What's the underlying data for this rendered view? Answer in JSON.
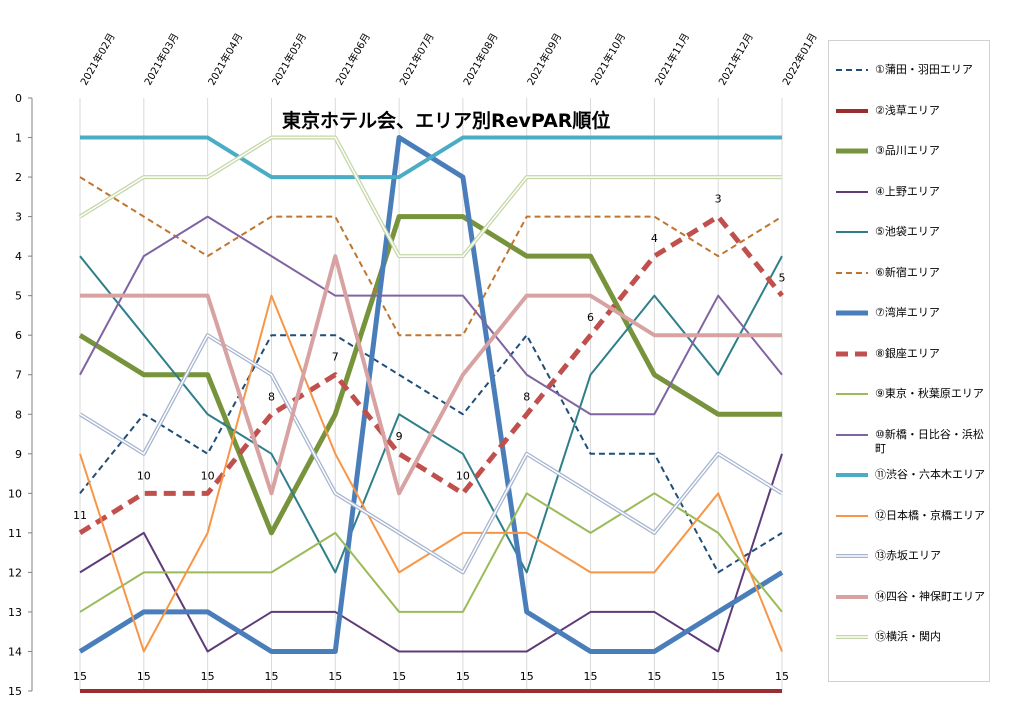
{
  "chart_data": {
    "type": "line",
    "title": "東京ホテル会、エリア別RevPAR順位",
    "categories": [
      "2021年02月",
      "2021年03月",
      "2021年04月",
      "2021年05月",
      "2021年06月",
      "2021年07月",
      "2021年08月",
      "2021年09月",
      "2021年10月",
      "2021年11月",
      "2021年12月",
      "2022年01月"
    ],
    "yticks": [
      "0",
      "1",
      "2",
      "3",
      "4",
      "5",
      "6",
      "7",
      "8",
      "9",
      "10",
      "11",
      "12",
      "13",
      "14",
      "15"
    ],
    "ylim": [
      0,
      15
    ],
    "y_reversed": true,
    "legend_position": "right",
    "bottom_labels": [
      "15",
      "15",
      "15",
      "15",
      "15",
      "15",
      "15",
      "15",
      "15",
      "15",
      "15",
      "15"
    ],
    "series": [
      {
        "name": "①蒲田・羽田エリア",
        "color": "#1F4E79",
        "dash": "dash",
        "width": 2,
        "values": [
          10,
          8,
          9,
          6,
          6,
          7,
          8,
          6,
          9,
          9,
          12,
          11
        ]
      },
      {
        "name": "②浅草エリア",
        "color": "#9B2D30",
        "dash": "solid",
        "width": 4,
        "values": [
          15,
          15,
          15,
          15,
          15,
          15,
          15,
          15,
          15,
          15,
          15,
          15
        ]
      },
      {
        "name": "③品川エリア",
        "color": "#77933C",
        "dash": "solid",
        "width": 5,
        "values": [
          6,
          7,
          7,
          11,
          8,
          3,
          3,
          4,
          4,
          7,
          8,
          8
        ]
      },
      {
        "name": "④上野エリア",
        "color": "#5F3B77",
        "dash": "solid",
        "width": 2,
        "values": [
          12,
          11,
          14,
          13,
          13,
          14,
          14,
          14,
          13,
          13,
          14,
          9
        ]
      },
      {
        "name": "⑤池袋エリア",
        "color": "#2E7F8A",
        "dash": "solid",
        "width": 2,
        "values": [
          4,
          6,
          8,
          9,
          12,
          8,
          9,
          12,
          7,
          5,
          7,
          4
        ]
      },
      {
        "name": "⑥新宿エリア",
        "color": "#C0752E",
        "dash": "dash",
        "width": 2,
        "values": [
          2,
          3,
          4,
          3,
          3,
          6,
          6,
          3,
          3,
          3,
          4,
          3
        ]
      },
      {
        "name": "⑦湾岸エリア",
        "color": "#4A7EBB",
        "dash": "solid",
        "width": 5,
        "values": [
          14,
          13,
          13,
          14,
          14,
          1,
          2,
          13,
          14,
          14,
          13,
          12
        ]
      },
      {
        "name": "⑧銀座エリア",
        "color": "#C0504D",
        "dash": "dash-thick",
        "width": 5,
        "values": [
          11,
          10,
          10,
          8,
          7,
          9,
          10,
          8,
          6,
          4,
          3,
          5
        ],
        "point_labels": [
          "11",
          "10",
          "10",
          "8",
          "7",
          "9",
          "10",
          "8",
          "6",
          "4",
          "3",
          "5"
        ]
      },
      {
        "name": "⑨東京・秋葉原エリア",
        "color": "#9BBB59",
        "dash": "solid",
        "width": 2,
        "values": [
          13,
          12,
          12,
          12,
          11,
          13,
          13,
          10,
          11,
          10,
          11,
          13
        ]
      },
      {
        "name": "⑩新橋・日比谷・浜松町",
        "color": "#8064A2",
        "dash": "solid",
        "width": 2,
        "values": [
          7,
          4,
          3,
          4,
          5,
          5,
          5,
          7,
          8,
          8,
          5,
          7
        ]
      },
      {
        "name": "⑪渋谷・六本木エリア",
        "color": "#4BACC6",
        "dash": "solid",
        "width": 4,
        "values": [
          1,
          1,
          1,
          2,
          2,
          2,
          1,
          1,
          1,
          1,
          1,
          1
        ]
      },
      {
        "name": "⑫日本橋・京橋エリア",
        "color": "#F79646",
        "dash": "solid",
        "width": 2,
        "values": [
          9,
          14,
          11,
          5,
          9,
          12,
          11,
          11,
          12,
          12,
          10,
          14
        ]
      },
      {
        "name": "⑬赤坂エリア",
        "color": "#A6B4D0",
        "dash": "double",
        "width": 2,
        "values": [
          8,
          9,
          6,
          7,
          10,
          11,
          12,
          9,
          10,
          11,
          9,
          10
        ]
      },
      {
        "name": "⑭四谷・神保町エリア",
        "color": "#D7A2A1",
        "dash": "solid",
        "width": 4,
        "values": [
          5,
          5,
          5,
          10,
          4,
          10,
          7,
          5,
          5,
          6,
          6,
          6
        ]
      },
      {
        "name": "⑮横浜・関内",
        "color": "#C4D6A6",
        "dash": "double",
        "width": 2,
        "values": [
          3,
          2,
          2,
          1,
          1,
          4,
          4,
          2,
          2,
          2,
          2,
          2
        ]
      }
    ]
  }
}
